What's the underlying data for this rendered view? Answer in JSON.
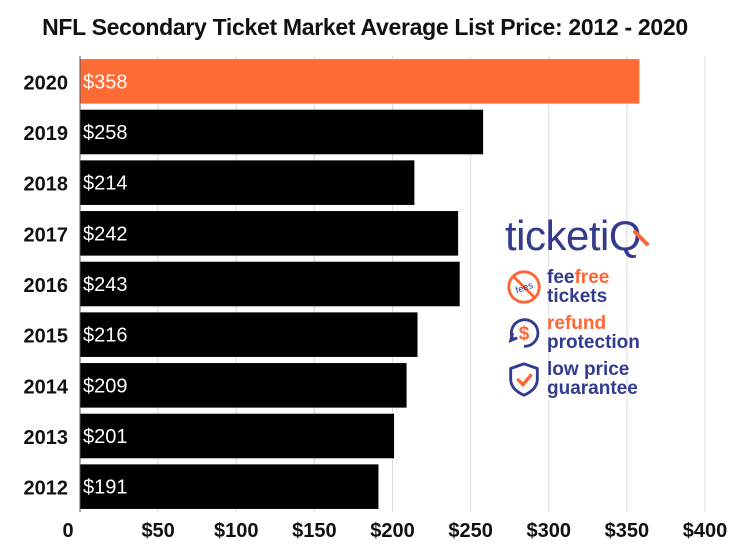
{
  "chart_data": {
    "type": "bar",
    "orientation": "horizontal",
    "title": "NFL Secondary Ticket Market Average List Price: 2012 - 2020",
    "categories": [
      "2020",
      "2019",
      "2018",
      "2017",
      "2016",
      "2015",
      "2014",
      "2013",
      "2012"
    ],
    "values": [
      358,
      258,
      214,
      242,
      243,
      216,
      209,
      201,
      191
    ],
    "data_labels": [
      "$358",
      "$258",
      "$214",
      "$242",
      "$243",
      "$216",
      "$209",
      "$201",
      "$191"
    ],
    "xlim": [
      0,
      400
    ],
    "xticks": [
      0,
      50,
      100,
      150,
      200,
      250,
      300,
      350,
      400
    ],
    "xtick_labels": [
      "0",
      "$50",
      "$100",
      "$150",
      "$200",
      "$250",
      "$300",
      "$350",
      "$400"
    ],
    "grid": true,
    "bar_colors": [
      "#ff6b35",
      "#000000",
      "#000000",
      "#000000",
      "#000000",
      "#000000",
      "#000000",
      "#000000",
      "#000000"
    ]
  },
  "branding": {
    "logo_main": "ticket",
    "logo_accent": "iQ",
    "features": [
      {
        "icon": "no-fees-icon",
        "line1_a": "fee",
        "line1_b": "free",
        "line2": "tickets"
      },
      {
        "icon": "refund-dollar-icon",
        "line1": "refund",
        "line2": "protection"
      },
      {
        "icon": "shield-check-icon",
        "line1": "low price",
        "line2": "guarantee"
      }
    ],
    "icon_badge_text": "fees",
    "colors": {
      "navy": "#333b8f",
      "orange": "#ff6633"
    }
  }
}
